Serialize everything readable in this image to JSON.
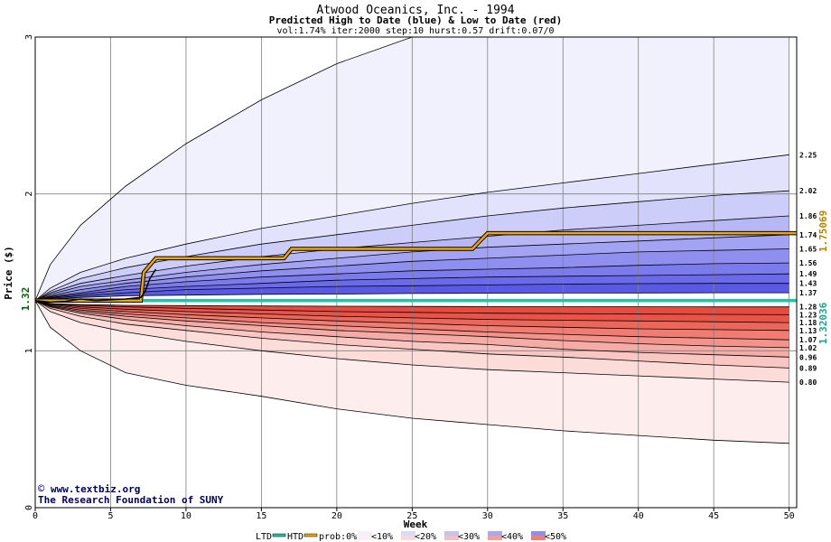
{
  "chart_data": {
    "type": "area",
    "title": "Atwood Oceanics, Inc. - 1994",
    "subtitle": "Predicted High to Date (blue) &  Low to Date (red)",
    "params": "vol:1.74% iter:2000 step:10 hurst:0.57 drift:0.07/0",
    "xlabel": "Week",
    "ylabel": "Price ($)",
    "xlim": [
      0,
      50.5
    ],
    "ylim": [
      0,
      3
    ],
    "x_ticks": [
      "0",
      "5",
      "10",
      "15",
      "20",
      "25",
      "30",
      "35",
      "40",
      "45",
      "50"
    ],
    "y_ticks": [
      "0",
      "1",
      "2",
      "3"
    ],
    "grid": true,
    "start_price": 1.32,
    "start_label": "1.32",
    "htd_value_label": "1.75069",
    "ltd_value_label": "1.32036",
    "upper_bands": [
      {
        "weeks": [
          0,
          1,
          3,
          6,
          10,
          15,
          20,
          25,
          30,
          35,
          40,
          45,
          50
        ],
        "values": [
          1.32,
          1.55,
          1.8,
          2.05,
          2.32,
          2.6,
          2.83,
          3.0,
          3.0,
          3.0,
          3.0,
          3.0,
          3.0
        ]
      },
      {
        "weeks": [
          0,
          1,
          3,
          6,
          10,
          15,
          20,
          25,
          30,
          35,
          40,
          45,
          50
        ],
        "values": [
          1.32,
          1.4,
          1.5,
          1.59,
          1.68,
          1.78,
          1.86,
          1.94,
          2.01,
          2.07,
          2.13,
          2.19,
          2.25
        ]
      },
      {
        "weeks": [
          0,
          1,
          3,
          6,
          10,
          15,
          20,
          25,
          30,
          35,
          40,
          45,
          50
        ],
        "values": [
          1.32,
          1.38,
          1.46,
          1.53,
          1.6,
          1.68,
          1.74,
          1.8,
          1.86,
          1.91,
          1.95,
          1.99,
          2.02
        ]
      },
      {
        "weeks": [
          0,
          1,
          3,
          6,
          10,
          15,
          20,
          25,
          30,
          35,
          40,
          45,
          50
        ],
        "values": [
          1.32,
          1.37,
          1.43,
          1.48,
          1.54,
          1.6,
          1.65,
          1.69,
          1.73,
          1.77,
          1.8,
          1.83,
          1.86
        ]
      },
      {
        "weeks": [
          0,
          1,
          3,
          6,
          10,
          15,
          20,
          25,
          30,
          35,
          40,
          45,
          50
        ],
        "values": [
          1.32,
          1.36,
          1.41,
          1.45,
          1.5,
          1.55,
          1.59,
          1.63,
          1.66,
          1.68,
          1.7,
          1.72,
          1.74
        ]
      },
      {
        "weeks": [
          0,
          1,
          3,
          6,
          10,
          15,
          20,
          25,
          30,
          35,
          40,
          45,
          50
        ],
        "values": [
          1.32,
          1.35,
          1.39,
          1.43,
          1.47,
          1.51,
          1.54,
          1.57,
          1.59,
          1.61,
          1.63,
          1.64,
          1.65
        ]
      },
      {
        "weeks": [
          0,
          1,
          3,
          6,
          10,
          15,
          20,
          25,
          30,
          35,
          40,
          45,
          50
        ],
        "values": [
          1.32,
          1.345,
          1.37,
          1.41,
          1.44,
          1.47,
          1.49,
          1.51,
          1.52,
          1.53,
          1.545,
          1.555,
          1.56
        ]
      },
      {
        "weeks": [
          0,
          1,
          3,
          6,
          10,
          15,
          20,
          25,
          30,
          35,
          40,
          45,
          50
        ],
        "values": [
          1.32,
          1.34,
          1.36,
          1.39,
          1.41,
          1.43,
          1.45,
          1.46,
          1.47,
          1.475,
          1.48,
          1.485,
          1.49
        ]
      },
      {
        "weeks": [
          0,
          1,
          3,
          6,
          10,
          15,
          20,
          25,
          30,
          35,
          40,
          45,
          50
        ],
        "values": [
          1.32,
          1.335,
          1.35,
          1.37,
          1.39,
          1.4,
          1.41,
          1.415,
          1.42,
          1.425,
          1.428,
          1.43,
          1.43
        ]
      },
      {
        "weeks": [
          0,
          1,
          3,
          6,
          10,
          15,
          20,
          25,
          30,
          35,
          40,
          45,
          50
        ],
        "values": [
          1.32,
          1.33,
          1.34,
          1.35,
          1.355,
          1.36,
          1.362,
          1.365,
          1.367,
          1.368,
          1.369,
          1.37,
          1.37
        ]
      }
    ],
    "lower_bands": [
      {
        "weeks": [
          0,
          1,
          3,
          6,
          10,
          15,
          20,
          25,
          30,
          35,
          40,
          45,
          50
        ],
        "values": [
          1.32,
          1.3,
          1.295,
          1.29,
          1.288,
          1.286,
          1.284,
          1.283,
          1.282,
          1.281,
          1.281,
          1.28,
          1.28
        ]
      },
      {
        "weeks": [
          0,
          1,
          3,
          6,
          10,
          15,
          20,
          25,
          30,
          35,
          40,
          45,
          50
        ],
        "values": [
          1.32,
          1.3,
          1.29,
          1.28,
          1.27,
          1.26,
          1.25,
          1.245,
          1.24,
          1.237,
          1.234,
          1.232,
          1.23
        ]
      },
      {
        "weeks": [
          0,
          1,
          3,
          6,
          10,
          15,
          20,
          25,
          30,
          35,
          40,
          45,
          50
        ],
        "values": [
          1.32,
          1.3,
          1.28,
          1.265,
          1.25,
          1.235,
          1.22,
          1.21,
          1.2,
          1.195,
          1.19,
          1.185,
          1.18
        ]
      },
      {
        "weeks": [
          0,
          1,
          3,
          6,
          10,
          15,
          20,
          25,
          30,
          35,
          40,
          45,
          50
        ],
        "values": [
          1.32,
          1.295,
          1.27,
          1.25,
          1.23,
          1.21,
          1.19,
          1.175,
          1.16,
          1.15,
          1.14,
          1.135,
          1.13
        ]
      },
      {
        "weeks": [
          0,
          1,
          3,
          6,
          10,
          15,
          20,
          25,
          30,
          35,
          40,
          45,
          50
        ],
        "values": [
          1.32,
          1.29,
          1.26,
          1.235,
          1.21,
          1.18,
          1.16,
          1.14,
          1.12,
          1.105,
          1.09,
          1.08,
          1.07
        ]
      },
      {
        "weeks": [
          0,
          1,
          3,
          6,
          10,
          15,
          20,
          25,
          30,
          35,
          40,
          45,
          50
        ],
        "values": [
          1.32,
          1.285,
          1.25,
          1.22,
          1.19,
          1.16,
          1.13,
          1.11,
          1.09,
          1.065,
          1.045,
          1.03,
          1.02
        ]
      },
      {
        "weeks": [
          0,
          1,
          3,
          6,
          10,
          15,
          20,
          25,
          30,
          35,
          40,
          45,
          50
        ],
        "values": [
          1.32,
          1.28,
          1.24,
          1.2,
          1.16,
          1.12,
          1.09,
          1.06,
          1.04,
          1.01,
          0.99,
          0.975,
          0.96
        ]
      },
      {
        "weeks": [
          0,
          1,
          3,
          6,
          10,
          15,
          20,
          25,
          30,
          35,
          40,
          45,
          50
        ],
        "values": [
          1.32,
          1.27,
          1.22,
          1.17,
          1.13,
          1.08,
          1.04,
          1.01,
          0.98,
          0.96,
          0.935,
          0.91,
          0.89
        ]
      },
      {
        "weeks": [
          0,
          1,
          3,
          6,
          10,
          15,
          20,
          25,
          30,
          35,
          40,
          45,
          50
        ],
        "values": [
          1.32,
          1.25,
          1.18,
          1.12,
          1.06,
          1.0,
          0.95,
          0.91,
          0.88,
          0.86,
          0.84,
          0.82,
          0.8
        ]
      },
      {
        "weeks": [
          0,
          1,
          3,
          6,
          10,
          15,
          20,
          25,
          30,
          35,
          40,
          45,
          50
        ],
        "values": [
          1.32,
          1.15,
          1.0,
          0.86,
          0.78,
          0.71,
          0.63,
          0.57,
          0.53,
          0.49,
          0.46,
          0.43,
          0.41
        ]
      }
    ],
    "htd_line": {
      "weeks": [
        0,
        7,
        7.2,
        8,
        16.5,
        17,
        29,
        29.6,
        30,
        50.5
      ],
      "values": [
        1.32,
        1.32,
        1.5,
        1.59,
        1.59,
        1.65,
        1.65,
        1.71,
        1.75,
        1.75
      ]
    },
    "ltd_line": {
      "weeks": [
        0,
        50.5
      ],
      "values": [
        1.32036,
        1.32036
      ]
    },
    "actual_line": {
      "weeks": [
        0,
        1,
        2,
        3,
        4,
        5,
        6,
        7,
        7.3,
        7.6,
        8
      ],
      "values": [
        1.32,
        1.31,
        1.315,
        1.33,
        1.32,
        1.325,
        1.33,
        1.34,
        1.38,
        1.46,
        1.52
      ]
    },
    "right_labels": [
      "2.25",
      "2.02",
      "1.86",
      "1.74",
      "1.65",
      "1.56",
      "1.49",
      "1.43",
      "1.37",
      "1.28",
      "1.23",
      "1.18",
      "1.13",
      "1.07",
      "1.02",
      "0.96",
      "0.89",
      "0.80"
    ],
    "right_label_values": [
      2.25,
      2.02,
      1.86,
      1.74,
      1.65,
      1.56,
      1.49,
      1.43,
      1.37,
      1.28,
      1.23,
      1.18,
      1.13,
      1.07,
      1.02,
      0.96,
      0.89,
      0.8
    ],
    "upper_fill_colors": [
      "#f1f1fe",
      "#e2e2fc",
      "#cdcdf9",
      "#b7b7f6",
      "#a3a3f3",
      "#8f8ff0",
      "#7b7bed",
      "#6a6aea",
      "#5959e6"
    ],
    "lower_fill_colors": [
      "#fdeeed",
      "#fbdcd9",
      "#f9c6c2",
      "#f6aca6",
      "#f3938b",
      "#f07c72",
      "#ed665a",
      "#ea5347",
      "#e74a3e"
    ],
    "htd_color": "#f0a800",
    "ltd_color": "#22c5a6",
    "legend": {
      "ltd_label": "LTD",
      "htd_label": "HTD",
      "prob_label": "prob:0%",
      "items": [
        "<10%",
        "<20%",
        "<30%",
        "<40%",
        "<50%"
      ],
      "upper_colors": [
        "#f1f1fe",
        "#d9d9fb",
        "#c2c2f8",
        "#a8a8f4",
        "#8e8ef0"
      ],
      "lower_colors": [
        "#fdf0ef",
        "#fbd9d6",
        "#f8c0ba",
        "#f4a096",
        "#f17f72"
      ]
    },
    "watermark_url": "www.textbiz.org",
    "watermark_org": "The Research Foundation of SUNY"
  }
}
